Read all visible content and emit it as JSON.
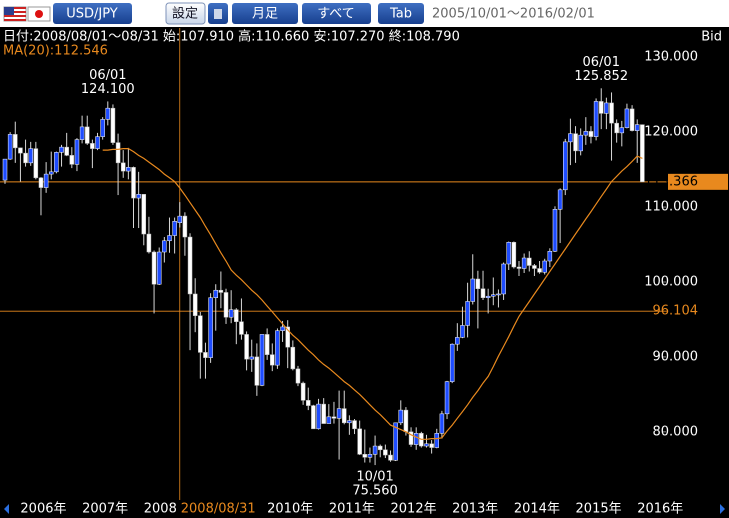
{
  "toolbar": {
    "pair": "USD/JPY",
    "buttons": [
      "設定",
      "月足",
      "すべて",
      "Tab"
    ],
    "range": "2005/10/01～2016/02/01"
  },
  "info": {
    "ohlc": "日付:2008/08/01～08/31 始:107.910 高:110.660 安:107.270 終:108.790",
    "ma": "MA(20):112.546",
    "price_side": "Bid"
  },
  "chart_data": {
    "type": "candlestick",
    "categories": [
      null,
      null,
      null,
      "2006年",
      null,
      null,
      null,
      null,
      null,
      null,
      null,
      null,
      null,
      null,
      null,
      "2007年",
      null,
      null,
      null,
      null,
      null,
      null,
      null,
      null,
      null,
      null,
      null,
      "2008",
      null,
      null,
      null,
      null,
      null,
      null,
      null,
      null,
      null,
      null,
      null,
      null,
      null,
      null,
      null,
      null,
      null,
      null,
      null,
      null,
      null,
      null,
      null,
      "2010年",
      null,
      null,
      null,
      null,
      null,
      null,
      null,
      null,
      null,
      null,
      null,
      "2011年",
      null,
      null,
      null,
      null,
      null,
      null,
      null,
      null,
      null,
      null,
      null,
      "2012年",
      null,
      null,
      null,
      null,
      null,
      null,
      null,
      null,
      null,
      null,
      null,
      "2013年",
      null,
      null,
      null,
      null,
      null,
      null,
      null,
      null,
      null,
      null,
      null,
      "2014年",
      null,
      null,
      null,
      null,
      null,
      null,
      null,
      null,
      null,
      null,
      null,
      "2015年",
      null,
      null,
      null,
      null,
      null,
      null,
      null,
      null,
      null,
      null,
      null,
      "2016年",
      null
    ],
    "open": [
      113.6,
      116.4,
      119.7,
      117.9,
      117.2,
      115.9,
      117.8,
      113.9,
      112.6,
      114.4,
      114.7,
      117.3,
      118.0,
      116.9,
      115.7,
      119.0,
      120.7,
      118.5,
      117.8,
      119.4,
      121.7,
      123.2,
      118.6,
      115.9,
      114.8,
      115.3,
      111.2,
      111.7,
      106.4,
      104.0,
      99.7,
      104.0,
      105.5,
      106.2,
      107.91,
      108.8,
      106.0,
      98.4,
      95.5,
      90.6,
      89.9,
      97.9,
      98.9,
      98.6,
      95.3,
      96.3,
      94.7,
      93.0,
      89.7,
      90.0,
      86.2,
      93.0,
      90.3,
      88.9,
      93.5,
      94.0,
      91.3,
      88.4,
      86.5,
      84.2,
      83.5,
      80.4,
      83.7,
      81.1,
      82.0,
      81.8,
      83.1,
      81.2,
      81.5,
      80.4,
      77.0,
      76.6,
      77.0,
      78.1,
      77.6,
      76.9,
      76.2,
      81.2,
      82.9,
      80.0,
      78.3,
      79.8,
      78.1,
      78.4,
      77.9,
      79.8,
      82.4,
      86.7,
      91.7,
      92.6,
      94.2,
      97.4,
      100.4,
      99.1,
      97.9,
      98.1,
      98.3,
      98.4,
      102.4,
      105.3,
      102.0,
      101.8,
      103.2,
      102.2,
      101.8,
      101.3,
      102.8,
      104.1,
      109.7,
      112.3,
      118.7,
      119.8,
      117.5,
      119.6,
      120.1,
      119.4,
      124.1,
      122.5,
      123.9,
      121.2,
      119.9,
      120.6,
      123.1,
      120.2,
      121.0
    ],
    "high": [
      116.4,
      120.0,
      121.4,
      117.9,
      119.0,
      118.7,
      118.7,
      114.0,
      116.0,
      117.4,
      117.4,
      118.3,
      119.9,
      118.0,
      119.2,
      122.2,
      122.2,
      119.0,
      119.9,
      122.0,
      124.1,
      123.7,
      119.8,
      117.6,
      117.9,
      115.4,
      114.7,
      111.7,
      108.7,
      104.2,
      104.6,
      106.0,
      108.6,
      108.6,
      110.66,
      109.3,
      106.5,
      100.5,
      96.0,
      91.9,
      98.5,
      99.7,
      101.4,
      99.1,
      98.9,
      96.5,
      97.8,
      93.4,
      92.3,
      91.8,
      93.0,
      93.8,
      91.8,
      93.8,
      94.8,
      94.9,
      92.2,
      88.8,
      86.7,
      85.9,
      83.6,
      84.4,
      84.5,
      83.7,
      84.0,
      85.5,
      85.5,
      82.2,
      81.7,
      81.5,
      80.3,
      77.9,
      79.5,
      78.3,
      78.3,
      77.5,
      81.2,
      84.2,
      83.3,
      80.6,
      80.6,
      80.0,
      79.6,
      78.9,
      80.4,
      82.8,
      86.8,
      91.8,
      94.5,
      96.7,
      99.9,
      103.7,
      101.5,
      101.5,
      99.1,
      100.6,
      99.0,
      102.6,
      105.4,
      105.4,
      102.8,
      103.8,
      104.1,
      102.4,
      102.8,
      103.1,
      104.5,
      110.1,
      112.5,
      119.1,
      121.8,
      120.8,
      120.5,
      122.0,
      120.8,
      124.5,
      125.852,
      124.6,
      125.3,
      121.7,
      121.5,
      123.8,
      123.6,
      121.7,
      121.0
    ],
    "low": [
      113.1,
      116.3,
      115.9,
      113.4,
      115.4,
      115.5,
      113.7,
      108.9,
      111.9,
      113.7,
      114.5,
      115.4,
      116.8,
      115.2,
      114.8,
      118.5,
      118.3,
      115.2,
      117.6,
      119.0,
      120.9,
      118.3,
      111.6,
      113.9,
      113.7,
      107.2,
      107.2,
      104.9,
      103.8,
      95.8,
      99.6,
      102.6,
      103.9,
      103.8,
      107.27,
      103.5,
      90.9,
      93.3,
      87.1,
      87.1,
      89.2,
      93.5,
      96.5,
      94.4,
      94.5,
      91.7,
      92.3,
      88.2,
      88.0,
      84.8,
      86.1,
      89.6,
      88.1,
      88.4,
      92.0,
      88.5,
      88.2,
      86.1,
      83.6,
      82.9,
      80.4,
      80.3,
      81.1,
      81.1,
      81.1,
      76.3,
      81.0,
      79.6,
      79.7,
      76.9,
      75.9,
      75.9,
      75.56,
      76.6,
      76.5,
      76.0,
      76.1,
      80.9,
      79.5,
      78.0,
      77.6,
      77.9,
      77.9,
      77.1,
      77.8,
      79.1,
      81.7,
      86.5,
      90.8,
      92.5,
      92.6,
      97.0,
      93.8,
      97.6,
      95.8,
      96.9,
      96.6,
      97.6,
      101.6,
      101.8,
      100.8,
      101.2,
      101.4,
      100.8,
      101.1,
      101.0,
      102.0,
      104.0,
      105.2,
      111.6,
      115.6,
      115.9,
      116.9,
      118.3,
      118.5,
      118.9,
      120.4,
      120.4,
      116.2,
      118.6,
      118.1,
      120.5,
      120.1,
      115.9,
      113.366
    ],
    "close": [
      116.4,
      119.7,
      117.9,
      117.2,
      115.9,
      117.8,
      113.9,
      112.6,
      114.4,
      114.7,
      117.3,
      118.0,
      116.9,
      115.7,
      119.0,
      120.7,
      118.5,
      117.8,
      119.4,
      121.7,
      123.2,
      118.6,
      115.9,
      114.8,
      115.3,
      111.2,
      111.7,
      106.4,
      104.0,
      99.7,
      104.0,
      105.5,
      106.2,
      108.1,
      108.79,
      106.0,
      98.4,
      95.5,
      90.6,
      89.9,
      97.9,
      98.9,
      98.6,
      95.3,
      96.3,
      94.7,
      93.0,
      89.7,
      90.0,
      86.2,
      93.0,
      90.3,
      88.9,
      93.5,
      94.0,
      91.3,
      88.4,
      86.5,
      84.2,
      83.5,
      80.4,
      83.7,
      81.1,
      82.0,
      81.8,
      83.1,
      81.2,
      81.5,
      80.4,
      77.0,
      76.6,
      77.0,
      78.1,
      77.6,
      76.9,
      76.2,
      81.2,
      82.9,
      80.0,
      78.3,
      79.8,
      78.1,
      78.4,
      77.9,
      79.8,
      82.4,
      86.7,
      91.7,
      92.6,
      94.2,
      97.4,
      100.4,
      99.1,
      97.9,
      98.1,
      98.3,
      98.4,
      102.4,
      105.3,
      102.0,
      101.8,
      103.2,
      102.2,
      101.8,
      101.3,
      102.8,
      104.1,
      109.7,
      112.3,
      118.7,
      119.8,
      117.5,
      119.6,
      120.1,
      119.4,
      124.1,
      122.5,
      123.9,
      121.2,
      119.9,
      120.6,
      123.1,
      120.2,
      121.0,
      113.366
    ],
    "ma20": [
      null,
      null,
      null,
      null,
      null,
      null,
      null,
      null,
      null,
      null,
      null,
      null,
      null,
      null,
      null,
      null,
      null,
      null,
      null,
      117.6,
      117.6,
      117.7,
      117.7,
      117.8,
      117.8,
      117.4,
      116.9,
      116.5,
      116.0,
      115.5,
      115.0,
      114.4,
      113.9,
      113.4,
      112.546,
      111.6,
      110.6,
      109.6,
      108.6,
      107.4,
      106.3,
      105.1,
      103.9,
      102.8,
      101.6,
      100.9,
      100.3,
      99.6,
      98.9,
      98.3,
      97.6,
      96.8,
      96.0,
      95.2,
      94.4,
      93.6,
      92.9,
      92.3,
      91.6,
      90.9,
      90.3,
      89.6,
      89.0,
      88.5,
      87.9,
      87.3,
      86.7,
      86.2,
      85.6,
      85.0,
      84.3,
      83.6,
      82.9,
      82.3,
      81.6,
      80.9,
      80.6,
      80.3,
      80.0,
      79.6,
      79.3,
      79.0,
      79.0,
      79.1,
      79.1,
      79.2,
      80.1,
      80.9,
      81.8,
      82.7,
      83.6,
      84.6,
      85.5,
      86.5,
      87.4,
      88.7,
      90.1,
      91.4,
      92.7,
      94.1,
      95.4,
      96.4,
      97.4,
      98.4,
      99.4,
      100.4,
      101.4,
      102.4,
      103.4,
      104.4,
      105.4,
      106.4,
      107.4,
      108.4,
      109.4,
      110.4,
      111.4,
      112.4,
      113.4,
      114.1,
      114.8,
      115.4,
      116.1,
      116.8,
      116.5
    ],
    "up_color": "#1e4cff",
    "down_color": "#ffffff",
    "wick_color": "#d8d8d8",
    "ma_color": "#e8891e",
    "ylim": [
      71.3,
      133.9
    ],
    "yticks": [
      {
        "value": 80,
        "label": "80.000"
      },
      {
        "value": 90,
        "label": "90.000"
      },
      {
        "value": 100,
        "label": "100.000"
      },
      {
        "value": 110,
        "label": "110.000"
      },
      {
        "value": 120,
        "label": "120.000"
      },
      {
        "value": 130,
        "label": "130.000"
      }
    ],
    "annotations": [
      {
        "date": "06/01",
        "label": "124.100",
        "value": 124.1
      },
      {
        "date": "06/01",
        "label": "125.852",
        "value": 125.852
      },
      {
        "date": "10/01",
        "label": "75.560",
        "value": 75.56
      }
    ],
    "last_price": {
      "value": 113.366,
      "label": "113.366"
    },
    "crosshair": {
      "value": 96.104,
      "label": "96.104",
      "date_label": "2008/08/31",
      "index": 34
    }
  }
}
